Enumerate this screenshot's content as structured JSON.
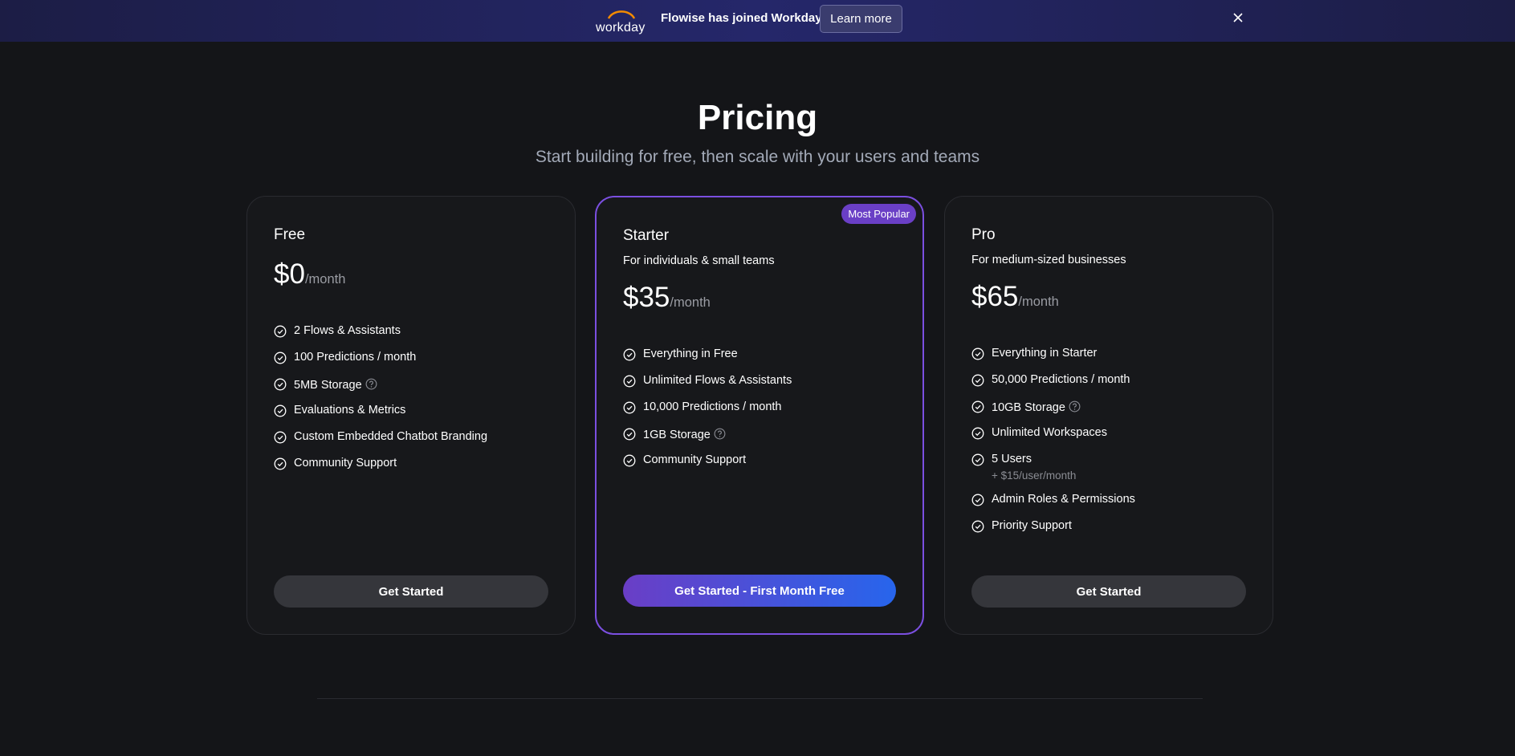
{
  "banner": {
    "logo": "workday",
    "text": "Flowise has joined Workday",
    "button": "Learn more"
  },
  "header": {
    "title": "Pricing",
    "subtitle": "Start building for free, then scale with your users and teams"
  },
  "plans": [
    {
      "name": "Free",
      "price": "$0",
      "period": "/month",
      "features": [
        {
          "text": "2 Flows & Assistants"
        },
        {
          "text": "100 Predictions / month"
        },
        {
          "text": "5MB Storage",
          "help": true
        },
        {
          "text": "Evaluations & Metrics"
        },
        {
          "text": "Custom Embedded Chatbot Branding"
        },
        {
          "text": "Community Support"
        }
      ],
      "button": "Get Started"
    },
    {
      "name": "Starter",
      "badge": "Most Popular",
      "description": "For individuals & small teams",
      "price": "$35",
      "period": "/month",
      "features": [
        {
          "text": "Everything in Free"
        },
        {
          "text": "Unlimited Flows & Assistants"
        },
        {
          "text": "10,000 Predictions / month"
        },
        {
          "text": "1GB Storage",
          "help": true
        },
        {
          "text": "Community Support"
        }
      ],
      "button": "Get Started - First Month Free",
      "highlight": true
    },
    {
      "name": "Pro",
      "description": "For medium-sized businesses",
      "price": "$65",
      "period": "/month",
      "features": [
        {
          "text": "Everything in Starter"
        },
        {
          "text": "50,000 Predictions / month"
        },
        {
          "text": "10GB Storage",
          "help": true
        },
        {
          "text": "Unlimited Workspaces"
        },
        {
          "text": "5 Users",
          "note": "+ $15/user/month"
        },
        {
          "text": "Admin Roles & Permissions"
        },
        {
          "text": "Priority Support"
        }
      ],
      "button": "Get Started"
    }
  ]
}
